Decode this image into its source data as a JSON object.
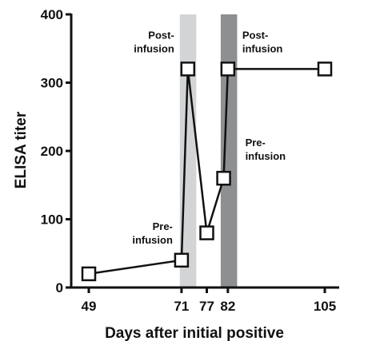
{
  "chart_data": {
    "type": "line",
    "title": "",
    "xlabel": "Days after initial positive",
    "ylabel": "ELISA titer",
    "ylim": [
      0,
      400
    ],
    "y_ticks": [
      0,
      100,
      200,
      300,
      400
    ],
    "x_tick_labels": [
      "49",
      "71",
      "77",
      "82",
      "105"
    ],
    "grid": false,
    "legend": "none",
    "series": [
      {
        "x": [
          49,
          71,
          72.5,
          77,
          81,
          82,
          105
        ],
        "y": [
          20,
          40,
          320,
          80,
          160,
          320,
          320
        ]
      }
    ],
    "shaded_regions": [
      {
        "x_start": 70.6,
        "x_end": 74.5,
        "color": "#d2d4d6"
      },
      {
        "x_start": 80.3,
        "x_end": 84.2,
        "color": "#8d8f92"
      }
    ],
    "annotations": [
      {
        "lines": [
          "Pre-",
          "infusion"
        ],
        "x": 71,
        "y": 40
      },
      {
        "lines": [
          "Post-",
          "infusion"
        ],
        "x": 72.5,
        "y": 320
      },
      {
        "lines": [
          "Pre-",
          "infusion"
        ],
        "x": 81,
        "y": 160
      },
      {
        "lines": [
          "Post-",
          "infusion"
        ],
        "x": 82,
        "y": 320
      }
    ]
  }
}
